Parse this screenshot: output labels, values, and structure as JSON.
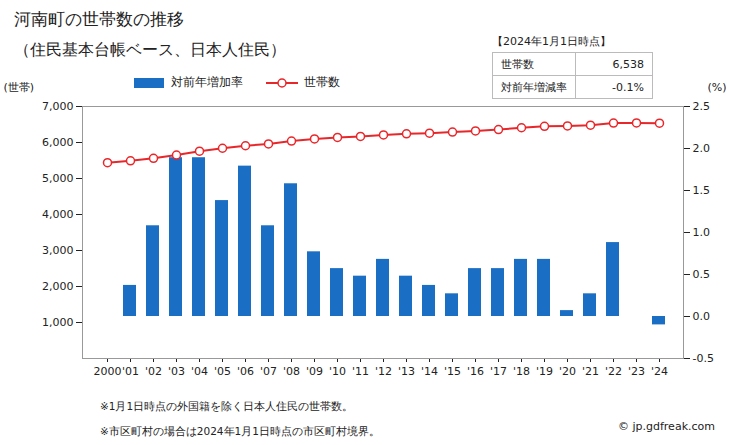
{
  "chart_data": {
    "type": "bar_line",
    "title": "河南町の世帯数の推移",
    "subtitle": "（住民基本台帳ベース、日本人住民）",
    "y_label": "(世帯)",
    "y2_label": "(%)",
    "categories": [
      "2000",
      "'01",
      "'02",
      "'03",
      "'04",
      "'05",
      "'06",
      "'07",
      "'08",
      "'09",
      "'10",
      "'11",
      "'12",
      "'13",
      "'14",
      "'15",
      "'16",
      "'17",
      "'18",
      "'19",
      "'20",
      "'21",
      "'22",
      "'23",
      "'24"
    ],
    "series": [
      {
        "name": "対前年増加率",
        "type": "bar",
        "axis": "y2",
        "color": "#1a6fc4",
        "values": [
          null,
          0.37,
          1.08,
          1.89,
          1.89,
          1.38,
          1.79,
          1.08,
          1.58,
          0.77,
          0.57,
          0.48,
          0.68,
          0.48,
          0.37,
          0.27,
          0.57,
          0.57,
          0.68,
          0.68,
          0.07,
          0.27,
          0.88,
          0.0,
          -0.1
        ]
      },
      {
        "name": "世帯数",
        "type": "line",
        "color": "#e8272a",
        "marker": "circle",
        "values": [
          5440,
          5490,
          5560,
          5650,
          5760,
          5840,
          5910,
          5960,
          6040,
          6100,
          6140,
          6170,
          6210,
          6240,
          6260,
          6290,
          6320,
          6360,
          6410,
          6450,
          6460,
          6480,
          6540,
          6545,
          6538
        ]
      }
    ],
    "ylim": [
      0,
      7000
    ],
    "yticks": [
      {
        "value": 1000,
        "label": "1,000"
      },
      {
        "value": 2000,
        "label": "2,000"
      },
      {
        "value": 3000,
        "label": "3,000"
      },
      {
        "value": 4000,
        "label": "4,000"
      },
      {
        "value": 5000,
        "label": "5,000"
      },
      {
        "value": 6000,
        "label": "6,000"
      },
      {
        "value": 7000,
        "label": "7,000"
      }
    ],
    "y2lim": [
      -0.5,
      2.5
    ],
    "y2ticks": [
      -0.5,
      {
        "value": 0,
        "label": "0.0"
      },
      0.5,
      {
        "value": 1,
        "label": "1.0"
      },
      1.5,
      {
        "value": 2,
        "label": "2.0"
      },
      2.5
    ],
    "grid": false,
    "legend": "top",
    "info_box": {
      "title": "【2024年1月1日時点】",
      "rows": [
        [
          "世帯数",
          "6,538"
        ],
        [
          "対前年増減率",
          "-0.1%"
        ]
      ]
    },
    "notes": [
      "※1月1日時点の外国籍を除く日本人住民の世帯数。",
      "※市区町村の場合は2024年1月1日時点の市区町村境界。"
    ],
    "source": "© jp.gdfreak.com"
  }
}
